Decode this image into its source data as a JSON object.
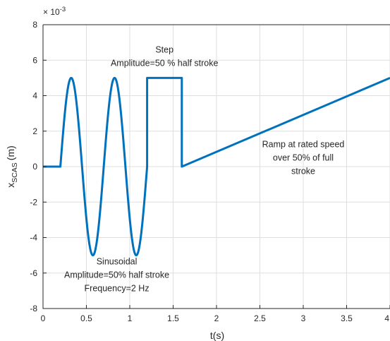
{
  "chart_data": {
    "type": "line",
    "title": "",
    "xlabel": "t(s)",
    "ylabel_main": "x",
    "ylabel_sub": "SCAS",
    "ylabel_unit": "(m)",
    "y_exponent_prefix": "× 10",
    "y_exponent": "-3",
    "xlim": [
      0,
      4
    ],
    "ylim": [
      -8,
      8
    ],
    "y_scale_note": "values in units of 1e-3 m",
    "x_ticks": [
      0,
      0.5,
      1,
      1.5,
      2,
      2.5,
      3,
      3.5,
      4
    ],
    "x_tick_labels": [
      "0",
      "0.5",
      "1",
      "1.5",
      "2",
      "2.5",
      "3",
      "3.5",
      "4"
    ],
    "y_ticks": [
      -8,
      -6,
      -4,
      -2,
      0,
      2,
      4,
      6,
      8
    ],
    "y_tick_labels": [
      "-8",
      "-6",
      "-4",
      "-2",
      "0",
      "2",
      "4",
      "6",
      "8"
    ],
    "grid": true,
    "color": "#0072bd",
    "series": [
      {
        "segments": [
          {
            "kind": "constant",
            "t_start": 0,
            "t_end": 0.2,
            "value": 0
          },
          {
            "kind": "sine",
            "t_start": 0.2,
            "t_end": 1.2,
            "amplitude": 5,
            "frequency_hz": 2
          },
          {
            "kind": "constant",
            "t_start": 1.2,
            "t_end": 1.6,
            "value": 5
          },
          {
            "kind": "linear",
            "t_start": 1.6,
            "t_end": 4,
            "value_start": 0,
            "value_end": 5
          }
        ]
      }
    ],
    "annotations": [
      {
        "lines": [
          "Step",
          "Amplitude=50 % half stroke"
        ],
        "at": [
          1.4,
          6.2
        ]
      },
      {
        "lines": [
          "Ramp at rated speed",
          "over 50% of full",
          "stroke"
        ],
        "at": [
          3.0,
          0.5
        ]
      },
      {
        "lines": [
          "Sinusoidal",
          "Amplitude=50% half stroke",
          "Frequency=2 Hz"
        ],
        "at": [
          0.85,
          -6.1
        ]
      }
    ]
  }
}
